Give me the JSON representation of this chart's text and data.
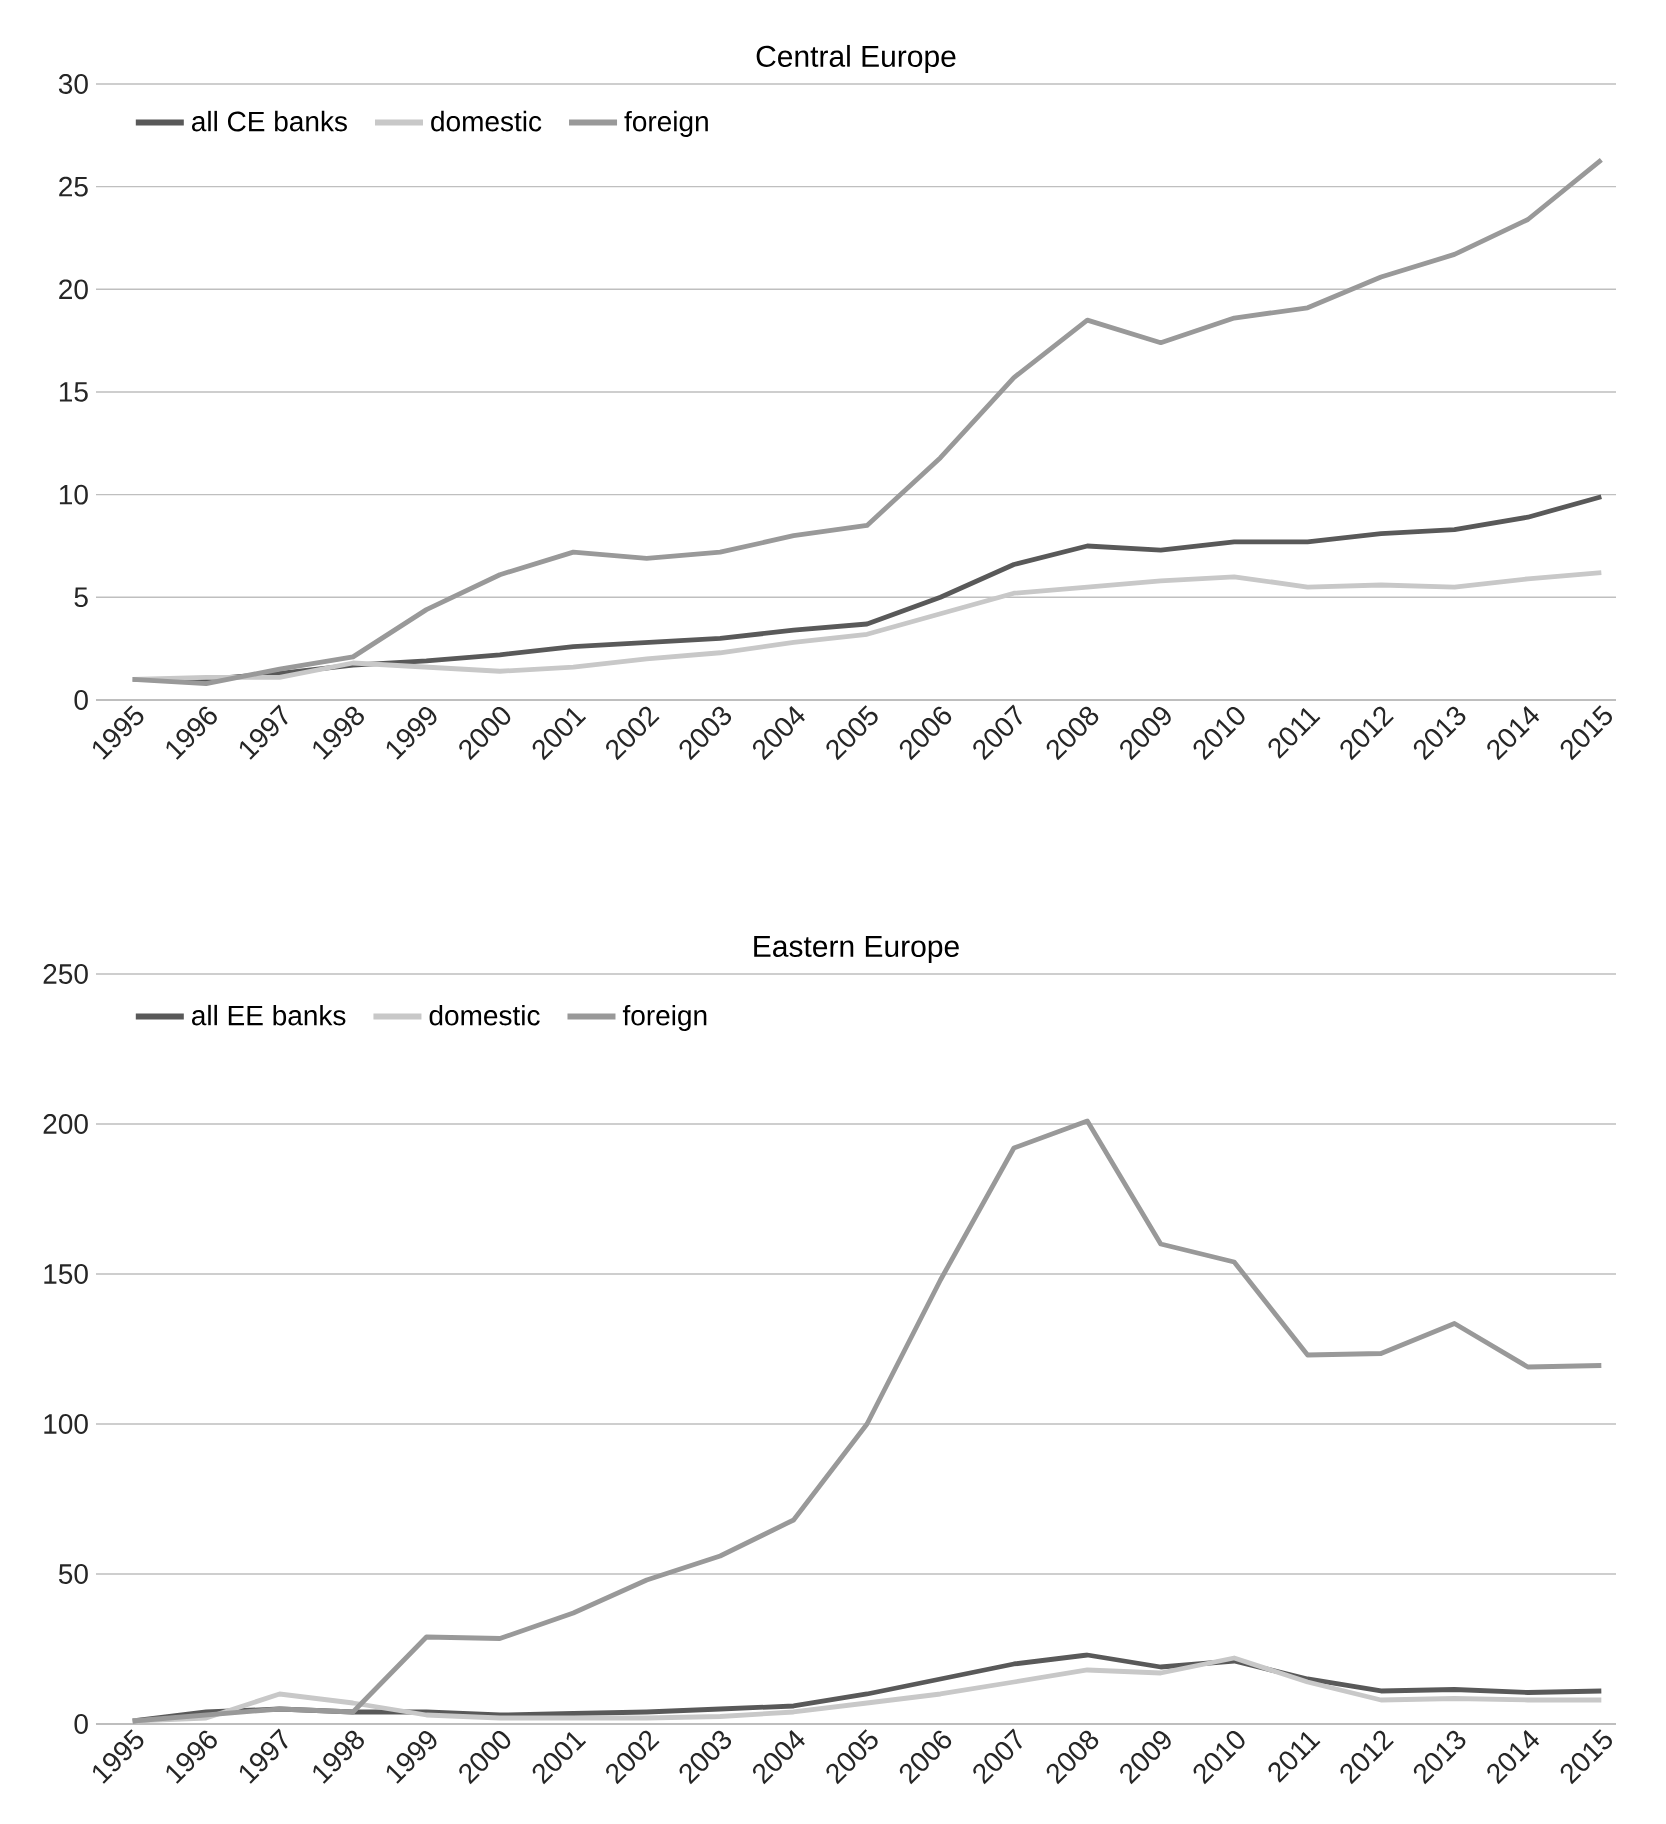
{
  "chart_data": [
    {
      "type": "line",
      "title": "Central Europe",
      "categories": [
        "1995",
        "1996",
        "1997",
        "1998",
        "1999",
        "2000",
        "2001",
        "2002",
        "2003",
        "2004",
        "2005",
        "2006",
        "2007",
        "2008",
        "2009",
        "2010",
        "2011",
        "2012",
        "2013",
        "2014",
        "2015"
      ],
      "ylim": [
        0,
        30
      ],
      "yticks": [
        0,
        5,
        10,
        15,
        20,
        25,
        30
      ],
      "grid": "y",
      "legend": "top left",
      "series": [
        {
          "name": "all CE banks",
          "color": "#595959",
          "values": [
            1.0,
            1.0,
            1.3,
            1.7,
            1.9,
            2.2,
            2.6,
            2.8,
            3.0,
            3.4,
            3.7,
            5.0,
            6.6,
            7.5,
            7.3,
            7.7,
            7.7,
            8.1,
            8.3,
            8.9,
            9.9
          ]
        },
        {
          "name": "domestic",
          "color": "#c8c8c8",
          "values": [
            1.0,
            1.1,
            1.1,
            1.8,
            1.6,
            1.4,
            1.6,
            2.0,
            2.3,
            2.8,
            3.2,
            4.2,
            5.2,
            5.5,
            5.8,
            6.0,
            5.5,
            5.6,
            5.5,
            5.9,
            6.2
          ]
        },
        {
          "name": "foreign",
          "color": "#999999",
          "values": [
            1.0,
            0.8,
            1.5,
            2.1,
            4.4,
            6.1,
            7.2,
            6.9,
            7.2,
            8.0,
            8.5,
            11.8,
            15.7,
            18.5,
            17.4,
            18.6,
            19.1,
            20.6,
            21.7,
            23.4,
            26.3
          ]
        }
      ]
    },
    {
      "type": "line",
      "title": "Eastern Europe",
      "categories": [
        "1995",
        "1996",
        "1997",
        "1998",
        "1999",
        "2000",
        "2001",
        "2002",
        "2003",
        "2004",
        "2005",
        "2006",
        "2007",
        "2008",
        "2009",
        "2010",
        "2011",
        "2012",
        "2013",
        "2014",
        "2015"
      ],
      "ylim": [
        0,
        250
      ],
      "yticks": [
        0,
        50,
        100,
        150,
        200,
        250
      ],
      "grid": "y",
      "legend": "top left",
      "series": [
        {
          "name": "all EE banks",
          "color": "#595959",
          "values": [
            1,
            4,
            5,
            4,
            4,
            3,
            3.5,
            4,
            5,
            6,
            10,
            15,
            20,
            23,
            19,
            21,
            15,
            11,
            11.5,
            10.5,
            11
          ]
        },
        {
          "name": "domestic",
          "color": "#c8c8c8",
          "values": [
            1,
            2,
            10,
            7,
            3,
            2,
            2,
            2,
            2.5,
            4,
            7,
            10,
            14,
            18,
            17,
            22,
            14,
            8,
            8.5,
            8,
            8
          ]
        },
        {
          "name": "foreign",
          "color": "#999999",
          "values": [
            1,
            3,
            5,
            4,
            29,
            28.5,
            37,
            48,
            56,
            68,
            100,
            148,
            192,
            201,
            160,
            154,
            123,
            123.5,
            133.5,
            119,
            119.5
          ]
        }
      ]
    }
  ]
}
